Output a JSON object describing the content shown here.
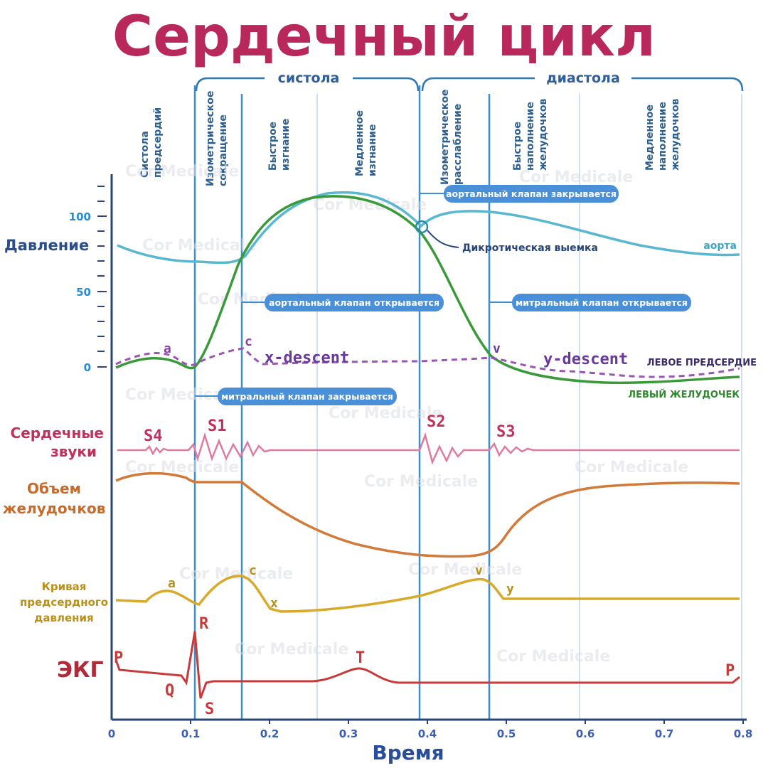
{
  "title": "Сердечный цикл",
  "watermark": "Cor Medicale",
  "brackets": {
    "systole": "систола",
    "diastole": "диастола"
  },
  "phases": [
    {
      "line1": "Систола",
      "line2": "предсердий",
      "line3": ""
    },
    {
      "line1": "Изометрическое",
      "line2": "сокращение",
      "line3": ""
    },
    {
      "line1": "Быстрое",
      "line2": "изгнание",
      "line3": ""
    },
    {
      "line1": "Медленное",
      "line2": "изгнание",
      "line3": ""
    },
    {
      "line1": "Изометрическое",
      "line2": "расслабление",
      "line3": ""
    },
    {
      "line1": "Быстрое",
      "line2": "наполнение",
      "line3": "желудочков"
    },
    {
      "line1": "Медленное",
      "line2": "наполнение",
      "line3": "желудочков"
    }
  ],
  "pressure": {
    "label": "Давление",
    "ticks": [
      "100",
      "50",
      "0"
    ],
    "aorta_label": "аорта",
    "atrium_label": "ЛЕВОЕ ПРЕДСЕРДИЕ",
    "ventricle_label": "ЛЕВЫЙ ЖЕЛУДОЧЕК",
    "a_wave": "a",
    "c_wave": "c",
    "v_wave": "v",
    "x_descent": "x-descent",
    "y_descent": "y-descent",
    "dicrotic_notch": "Дикротическая выемка"
  },
  "events": {
    "aortic_closes": "аортальный клапан закрывается",
    "aortic_opens": "аортальный клапан открывается",
    "mitral_opens": "митральный клапан открывается",
    "mitral_closes": "митральный клапан закрывается"
  },
  "sounds": {
    "label_line1": "Сердечные",
    "label_line2": "звуки",
    "s4": "S4",
    "s1": "S1",
    "s2": "S2",
    "s3": "S3"
  },
  "volume": {
    "label_line1": "Объем",
    "label_line2": "желудочков"
  },
  "atrial": {
    "label_line1": "Кривая",
    "label_line2": "предсердного",
    "label_line3": "давления",
    "a": "a",
    "c": "c",
    "x": "x",
    "v": "v",
    "y": "y"
  },
  "ecg": {
    "label": "ЭКГ",
    "p1": "P",
    "q": "Q",
    "r": "R",
    "s": "S",
    "t": "T",
    "p2": "P"
  },
  "x_axis": {
    "label": "Время",
    "ticks": [
      "0",
      "0.1",
      "0.2",
      "0.3",
      "0.4",
      "0.5",
      "0.6",
      "0.7",
      "0.8"
    ]
  },
  "colors": {
    "title": "#b8285a",
    "bracket": "#2e78b8",
    "divider": "#3a8fd0",
    "divider_light": "#cfe0ef",
    "axis": "#27457a",
    "aorta": "#5ab7d0",
    "ventricle": "#3a9a3a",
    "atrium": "#9a55b5",
    "sound": "#e07aa0",
    "volume": "#d27a3a",
    "atrial_curve": "#d8aa2a",
    "ecg": "#c83a3a",
    "pill": "#4a90d8"
  }
}
